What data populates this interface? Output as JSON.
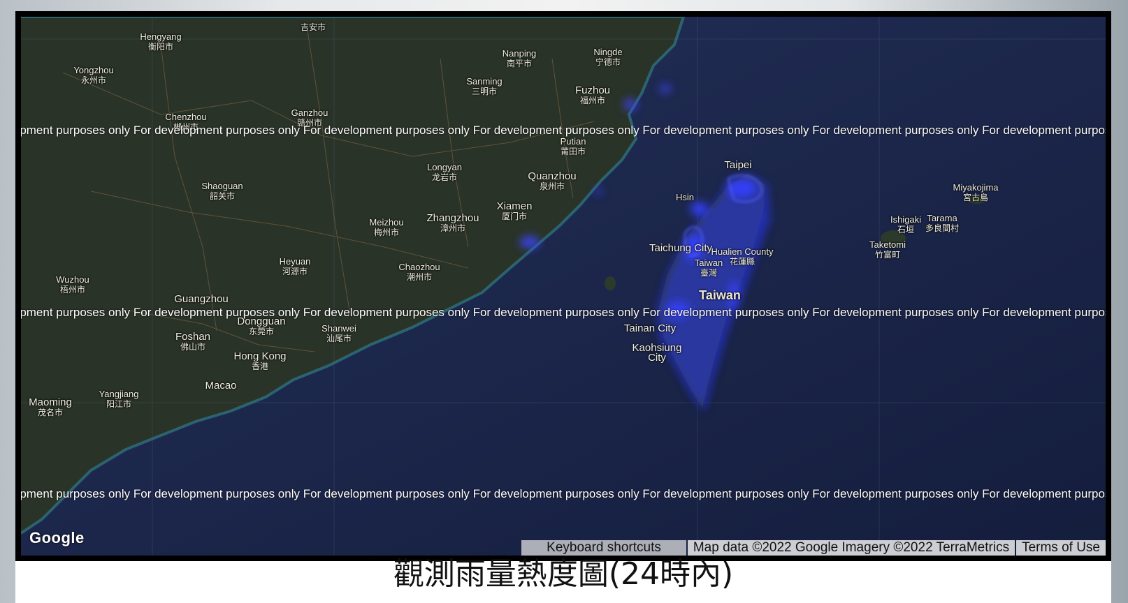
{
  "caption": "觀測雨量熱度圖(24時內)",
  "map": {
    "watermark": "For development purposes only",
    "logo": "Google",
    "attribution": {
      "keyboard": "Keyboard shortcuts",
      "mapdata": "Map data ©2022 Google Imagery ©2022 TerraMetrics",
      "terms": "Terms of Use"
    },
    "places": [
      {
        "id": "hengyang",
        "en": "Hengyang",
        "zh": "衡阳市"
      },
      {
        "id": "jian",
        "en": "",
        "zh": "吉安市"
      },
      {
        "id": "yongzhou",
        "en": "Yongzhou",
        "zh": "永州市"
      },
      {
        "id": "nanping",
        "en": "Nanping",
        "zh": "南平市"
      },
      {
        "id": "ningde",
        "en": "Ningde",
        "zh": "宁德市"
      },
      {
        "id": "sanming",
        "en": "Sanming",
        "zh": "三明市"
      },
      {
        "id": "fuzhou",
        "en": "Fuzhou",
        "zh": "福州市"
      },
      {
        "id": "ganzhou",
        "en": "Ganzhou",
        "zh": "赣州市"
      },
      {
        "id": "chenzhou",
        "en": "Chenzhou",
        "zh": "郴州市"
      },
      {
        "id": "putian",
        "en": "Putian",
        "zh": "莆田市"
      },
      {
        "id": "longyan",
        "en": "Longyan",
        "zh": "龙岩市"
      },
      {
        "id": "quanzhou",
        "en": "Quanzhou",
        "zh": "泉州市"
      },
      {
        "id": "shaoguan",
        "en": "Shaoguan",
        "zh": "韶关市"
      },
      {
        "id": "xiamen",
        "en": "Xiamen",
        "zh": "厦门市"
      },
      {
        "id": "meizhou",
        "en": "Meizhou",
        "zh": "梅州市"
      },
      {
        "id": "zhangzhou",
        "en": "Zhangzhou",
        "zh": "漳州市"
      },
      {
        "id": "heyuan",
        "en": "Heyuan",
        "zh": "河源市"
      },
      {
        "id": "chaozhou",
        "en": "Chaozhou",
        "zh": "潮州市"
      },
      {
        "id": "wuzhou",
        "en": "Wuzhou",
        "zh": "梧州市"
      },
      {
        "id": "guangzhou",
        "en": "Guangzhou",
        "zh": ""
      },
      {
        "id": "dongguan",
        "en": "Dongguan",
        "zh": "东莞市"
      },
      {
        "id": "shanwei",
        "en": "Shanwei",
        "zh": "汕尾市"
      },
      {
        "id": "foshan",
        "en": "Foshan",
        "zh": "佛山市"
      },
      {
        "id": "hongkong",
        "en": "Hong Kong",
        "zh": "香港"
      },
      {
        "id": "macao",
        "en": "Macao",
        "zh": ""
      },
      {
        "id": "yangjiang",
        "en": "Yangjiang",
        "zh": "阳江市"
      },
      {
        "id": "maoming",
        "en": "Maoming",
        "zh": "茂名市"
      },
      {
        "id": "taipei",
        "en": "Taipei",
        "zh": ""
      },
      {
        "id": "hsinchu",
        "en": "Hsin",
        "zh": ""
      },
      {
        "id": "taichung",
        "en": "Taichung City",
        "zh": ""
      },
      {
        "id": "hualien",
        "en": "Hualien County",
        "zh": "花蓮縣"
      },
      {
        "id": "taiwanlbl",
        "en": "Taiwan",
        "zh": "臺灣"
      },
      {
        "id": "taiwanbig",
        "en": "Taiwan",
        "zh": ""
      },
      {
        "id": "tainan",
        "en": "Tainan City",
        "zh": ""
      },
      {
        "id": "kaohsiung",
        "en": "Kaohsiung City",
        "zh": ""
      },
      {
        "id": "miyakojima",
        "en": "Miyakojima",
        "zh": "宮古島"
      },
      {
        "id": "ishigaki",
        "en": "Ishigaki",
        "zh": "石垣"
      },
      {
        "id": "tarama",
        "en": "Tarama",
        "zh": "多良間村"
      },
      {
        "id": "taketomi",
        "en": "Taketomi",
        "zh": "竹富町"
      }
    ]
  }
}
